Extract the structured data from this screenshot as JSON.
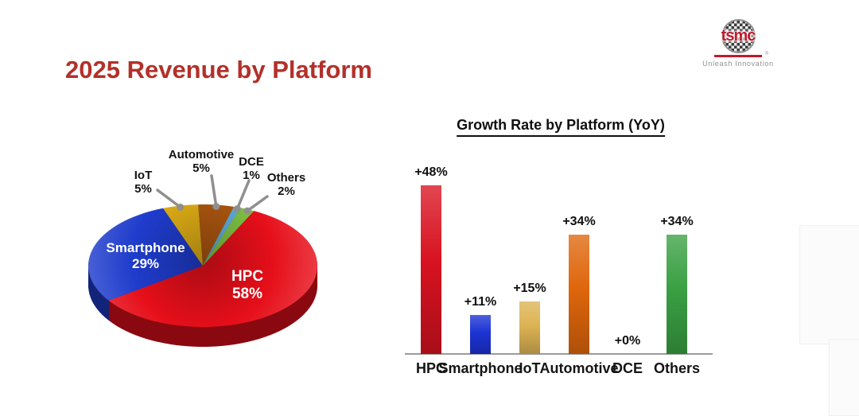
{
  "slide": {
    "title": "2025 Revenue by Platform",
    "logo": {
      "brand": "tsmc",
      "tagline": "Unleash Innovation",
      "reg": "®"
    }
  },
  "chart_data": [
    {
      "type": "pie",
      "style": "3d",
      "title": "2025 Revenue by Platform",
      "unit": "%",
      "legend_position": "none",
      "segments": [
        {
          "label": "HPC",
          "value": 58,
          "color": "#e60f1a",
          "label_style": "inside-white"
        },
        {
          "label": "Smartphone",
          "value": 29,
          "color": "#1f3ccc",
          "label_style": "inside-white"
        },
        {
          "label": "IoT",
          "value": 5,
          "color": "#e0ae16",
          "label_style": "callout"
        },
        {
          "label": "Automotive",
          "value": 5,
          "color": "#ad5710",
          "label_style": "callout"
        },
        {
          "label": "DCE",
          "value": 1,
          "color": "#5fadde",
          "label_style": "callout"
        },
        {
          "label": "Others",
          "value": 2,
          "color": "#7fc342",
          "label_style": "callout"
        }
      ]
    },
    {
      "type": "bar",
      "title": "Growth Rate by Platform (YoY)",
      "categories": [
        "HPC",
        "Smartphone",
        "IoT",
        "Automotive",
        "DCE",
        "Others"
      ],
      "values": [
        48,
        11,
        15,
        34,
        0,
        34
      ],
      "value_labels": [
        "+48%",
        "+11%",
        "+15%",
        "+34%",
        "+0%",
        "+34%"
      ],
      "colors": [
        "#d81220",
        "#1c33d4",
        "#ddb354",
        "#df660c",
        "#b0b0b0",
        "#3aa043"
      ],
      "xlabel": "",
      "ylabel": "",
      "ylim": [
        0,
        52
      ],
      "grid": false,
      "legend_position": "none",
      "baseline_color": "#9b9b9b"
    }
  ]
}
